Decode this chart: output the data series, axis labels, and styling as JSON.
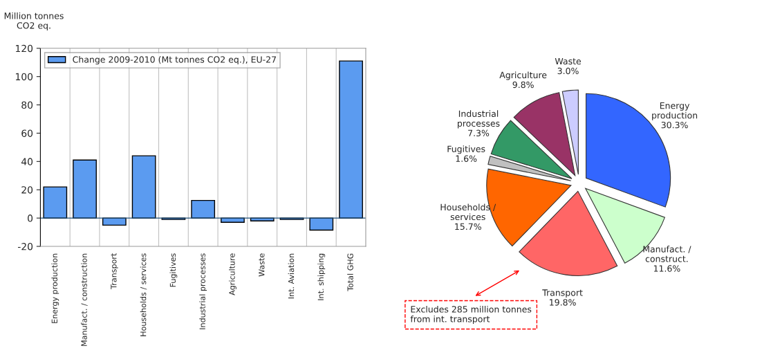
{
  "chart_data": [
    {
      "type": "bar",
      "ylabel": "Million tonnes CO2 eq.",
      "categories": [
        "Energy production",
        "Manufact. / construction",
        "Transport",
        "Households / services",
        "Fugitives",
        "Industrial processes",
        "Agriculture",
        "Waste",
        "Int. Aviation",
        "Int. shipping",
        "Total GHG"
      ],
      "series": [
        {
          "name": "Change 2009-2010 (Mt tonnes CO2 eq.), EU-27",
          "color": "#5b9bf0",
          "values": [
            22,
            41,
            -5,
            44,
            -1,
            12.5,
            -3,
            -2,
            -1,
            -8.5,
            111
          ]
        }
      ],
      "ylim": [
        -20,
        120
      ],
      "yticks": [
        -20,
        0,
        20,
        40,
        60,
        80,
        100,
        120
      ],
      "grid": "x",
      "legend": "top left",
      "ref_lines": [
        {
          "axis": "y",
          "value": 0,
          "color": "#1f4e79"
        }
      ]
    },
    {
      "type": "pie",
      "categories": [
        "Energy production",
        "Manufact. / construct.",
        "Transport",
        "Households / services",
        "Fugitives",
        "Industrial processes",
        "Agriculture",
        "Waste"
      ],
      "values": [
        30.3,
        11.6,
        19.8,
        15.7,
        1.6,
        7.3,
        9.8,
        3.0
      ],
      "value_labels": [
        "30.3%",
        "11.6%",
        "19.8%",
        "15.7%",
        "1.6%",
        "7.3%",
        "9.8%",
        "3.0%"
      ],
      "colors": [
        "#3366ff",
        "#ccffcc",
        "#ff6666",
        "#ff6600",
        "#c0c0c0",
        "#339966",
        "#993366",
        "#ccccff"
      ],
      "annotations": [
        "Excludes 285 million tonnes from int. transport"
      ]
    }
  ]
}
